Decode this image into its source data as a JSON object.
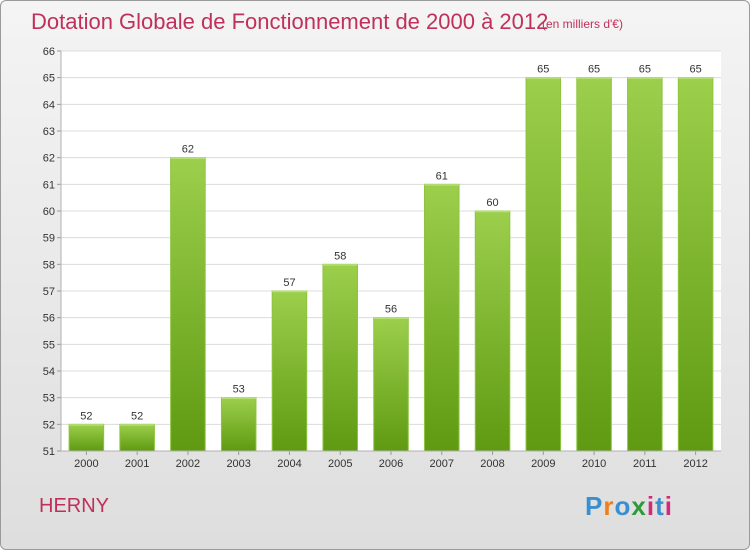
{
  "header": {
    "title": "Dotation Globale de Fonctionnement de 2000 à 2012",
    "unit": "(en milliers d'€)"
  },
  "footer": {
    "town": "HERNY",
    "logo_letters": [
      "P",
      "r",
      "o",
      "x",
      "i",
      "t",
      "i"
    ]
  },
  "colors": {
    "title": "#c0305a",
    "bar_top": "#9ccf4c",
    "bar_bottom": "#5f9a12",
    "logo": [
      "#3a8fd0",
      "#f07f1a",
      "#3a8fd0",
      "#2f9a3a",
      "#d02a7a",
      "#3a8fd0",
      "#d02a7a"
    ]
  },
  "chart_data": {
    "type": "bar",
    "categories": [
      "2000",
      "2001",
      "2002",
      "2003",
      "2004",
      "2005",
      "2006",
      "2007",
      "2008",
      "2009",
      "2010",
      "2011",
      "2012"
    ],
    "values": [
      52,
      52,
      62,
      53,
      57,
      58,
      56,
      61,
      60,
      65,
      65,
      65,
      65
    ],
    "data_labels": [
      "52",
      "52",
      "62",
      "53",
      "57",
      "58",
      "56",
      "61",
      "60",
      "65",
      "65",
      "65",
      "65"
    ],
    "yticks": [
      51,
      52,
      53,
      54,
      55,
      56,
      57,
      58,
      59,
      60,
      61,
      62,
      63,
      64,
      65,
      66
    ],
    "ylim": [
      51,
      66
    ],
    "grid": true,
    "legend": "none"
  }
}
